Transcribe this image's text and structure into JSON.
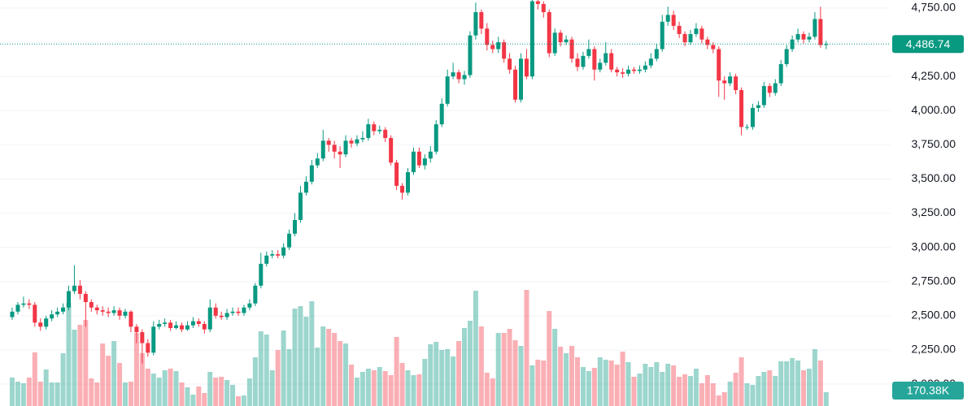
{
  "chart_data": {
    "type": "candlestick",
    "grid": true,
    "up_color": "#089981",
    "down_color": "#f23645",
    "volume_up_color": "rgba(8,153,129,0.4)",
    "volume_down_color": "rgba(242,54,69,0.4)",
    "ylim": [
      1840,
      4809
    ],
    "vlim": [
      0,
      5000000
    ],
    "yticks": [
      {
        "value": 2000,
        "label": "2,000.00"
      },
      {
        "value": 2250,
        "label": "2,250.00"
      },
      {
        "value": 2500,
        "label": "2,500.00"
      },
      {
        "value": 2750,
        "label": "2,750.00"
      },
      {
        "value": 3000,
        "label": "3,000.00"
      },
      {
        "value": 3250,
        "label": "3,250.00"
      },
      {
        "value": 3500,
        "label": "3,500.00"
      },
      {
        "value": 3750,
        "label": "3,750.00"
      },
      {
        "value": 4000,
        "label": "4,000.00"
      },
      {
        "value": 4250,
        "label": "4,250.00"
      },
      {
        "value": 4500,
        "label": "4,500.00"
      },
      {
        "value": 4750,
        "label": "4,750.00"
      }
    ],
    "last_price": {
      "value": 4486.74,
      "label": "4,486.74"
    },
    "last_volume": {
      "value": 170380,
      "label": "170.38K"
    },
    "open": [
      2490,
      2530,
      2580,
      2590,
      2580,
      2450,
      2420,
      2480,
      2510,
      2530,
      2560,
      2680,
      2720,
      2660,
      2600,
      2560,
      2540,
      2530,
      2520,
      2540,
      2500,
      2530,
      2420,
      2380,
      2300,
      2230,
      2420,
      2440,
      2450,
      2410,
      2430,
      2400,
      2430,
      2460,
      2440,
      2400,
      2560,
      2500,
      2490,
      2520,
      2530,
      2520,
      2560,
      2590,
      2720,
      2880,
      2940,
      2950,
      2940,
      3000,
      3100,
      3200,
      3400,
      3480,
      3600,
      3650,
      3780,
      3750,
      3700,
      3680,
      3780,
      3760,
      3790,
      3800,
      3900,
      3850,
      3860,
      3800,
      3620,
      3450,
      3400,
      3550,
      3700,
      3600,
      3650,
      3700,
      3900,
      4050,
      4250,
      4280,
      4230,
      4260,
      4550,
      4720,
      4600,
      4480,
      4450,
      4500,
      4380,
      4300,
      4080,
      4380,
      4250,
      4800,
      4780,
      4720,
      4420,
      4570,
      4500,
      4520,
      4380,
      4320,
      4400,
      4450,
      4300,
      4350,
      4420,
      4300,
      4280,
      4270,
      4300,
      4290,
      4300,
      4330,
      4380,
      4450,
      4650,
      4700,
      4620,
      4560,
      4500,
      4560,
      4600,
      4520,
      4480,
      4450,
      4220,
      4200,
      4250,
      4150,
      3880,
      3880,
      4020,
      4040,
      4180,
      4130,
      4200,
      4340,
      4450,
      4520,
      4560,
      4520,
      4540,
      4670,
      4480
    ],
    "high": [
      2560,
      2600,
      2640,
      2620,
      2600,
      2480,
      2500,
      2540,
      2560,
      2590,
      2720,
      2870,
      2760,
      2680,
      2620,
      2580,
      2570,
      2560,
      2570,
      2560,
      2550,
      2540,
      2440,
      2400,
      2330,
      2460,
      2470,
      2480,
      2470,
      2460,
      2450,
      2460,
      2490,
      2480,
      2460,
      2620,
      2590,
      2530,
      2550,
      2560,
      2560,
      2580,
      2620,
      2740,
      2960,
      2970,
      2980,
      2980,
      3030,
      3130,
      3250,
      3450,
      3520,
      3640,
      3690,
      3860,
      3800,
      3780,
      3740,
      3820,
      3800,
      3820,
      3850,
      3940,
      3920,
      3890,
      3880,
      3820,
      3640,
      3470,
      3580,
      3730,
      3730,
      3680,
      3740,
      3930,
      4090,
      4300,
      4350,
      4300,
      4290,
      4580,
      4790,
      4740,
      4640,
      4510,
      4540,
      4520,
      4420,
      4330,
      4420,
      4450,
      4810,
      4809,
      4800,
      4740,
      4600,
      4590,
      4550,
      4540,
      4420,
      4430,
      4520,
      4470,
      4380,
      4500,
      4450,
      4320,
      4310,
      4330,
      4320,
      4330,
      4360,
      4420,
      4490,
      4700,
      4760,
      4730,
      4650,
      4580,
      4590,
      4640,
      4620,
      4540,
      4500,
      4470,
      4250,
      4280,
      4270,
      4170,
      3900,
      4050,
      4070,
      4210,
      4200,
      4230,
      4370,
      4480,
      4550,
      4600,
      4580,
      4570,
      4720,
      4760,
      4510
    ],
    "low": [
      2470,
      2510,
      2560,
      2550,
      2420,
      2390,
      2400,
      2460,
      2490,
      2510,
      2540,
      2660,
      2620,
      2420,
      2530,
      2510,
      2500,
      2490,
      2500,
      2470,
      2480,
      2380,
      2300,
      2150,
      2200,
      2210,
      2400,
      2420,
      2390,
      2400,
      2380,
      2390,
      2410,
      2420,
      2370,
      2380,
      2480,
      2470,
      2470,
      2500,
      2500,
      2500,
      2540,
      2570,
      2700,
      2860,
      2920,
      2920,
      2920,
      2980,
      3080,
      3180,
      3380,
      3460,
      3580,
      3630,
      3700,
      3650,
      3580,
      3660,
      3730,
      3740,
      3770,
      3780,
      3820,
      3830,
      3770,
      3600,
      3420,
      3350,
      3380,
      3530,
      3580,
      3570,
      3620,
      3680,
      3880,
      4030,
      4230,
      4200,
      4190,
      4240,
      4520,
      4560,
      4440,
      4420,
      4420,
      4350,
      4270,
      4060,
      4060,
      4230,
      4230,
      4740,
      4680,
      4390,
      4400,
      4470,
      4480,
      4350,
      4290,
      4300,
      4380,
      4220,
      4280,
      4330,
      4280,
      4250,
      4240,
      4250,
      4270,
      4270,
      4280,
      4310,
      4360,
      4430,
      4620,
      4590,
      4530,
      4470,
      4480,
      4540,
      4490,
      4450,
      4420,
      4100,
      4080,
      4180,
      4120,
      3820,
      3860,
      3860,
      3990,
      4020,
      4100,
      4110,
      4180,
      4320,
      4430,
      4500,
      4490,
      4500,
      4520,
      4460,
      4450
    ],
    "close": [
      2530,
      2580,
      2590,
      2580,
      2450,
      2420,
      2480,
      2510,
      2530,
      2560,
      2680,
      2720,
      2660,
      2600,
      2560,
      2540,
      2530,
      2520,
      2540,
      2500,
      2530,
      2420,
      2380,
      2300,
      2230,
      2420,
      2440,
      2450,
      2410,
      2430,
      2400,
      2430,
      2460,
      2440,
      2400,
      2560,
      2500,
      2490,
      2520,
      2530,
      2520,
      2560,
      2590,
      2720,
      2880,
      2940,
      2950,
      2940,
      3000,
      3100,
      3200,
      3400,
      3480,
      3600,
      3650,
      3780,
      3750,
      3700,
      3680,
      3780,
      3760,
      3790,
      3800,
      3900,
      3850,
      3860,
      3800,
      3620,
      3450,
      3400,
      3550,
      3700,
      3600,
      3650,
      3700,
      3900,
      4050,
      4250,
      4280,
      4230,
      4260,
      4550,
      4720,
      4600,
      4480,
      4450,
      4500,
      4380,
      4300,
      4080,
      4380,
      4250,
      4800,
      4780,
      4720,
      4420,
      4570,
      4500,
      4520,
      4380,
      4320,
      4400,
      4450,
      4300,
      4350,
      4420,
      4300,
      4280,
      4270,
      4300,
      4290,
      4300,
      4330,
      4380,
      4450,
      4650,
      4700,
      4620,
      4560,
      4500,
      4560,
      4600,
      4520,
      4480,
      4450,
      4220,
      4200,
      4250,
      4150,
      3880,
      3880,
      4020,
      4040,
      4180,
      4130,
      4200,
      4340,
      4450,
      4520,
      4560,
      4520,
      4540,
      4670,
      4480,
      4486.74
    ],
    "volume": [
      350000,
      300000,
      280000,
      350000,
      660000,
      300000,
      450000,
      290000,
      290000,
      650000,
      1270000,
      940000,
      1000000,
      1060000,
      340000,
      290000,
      770000,
      620000,
      800000,
      530000,
      290000,
      300000,
      900000,
      650000,
      460000,
      400000,
      350000,
      440000,
      460000,
      430000,
      290000,
      230000,
      140000,
      240000,
      160000,
      420000,
      350000,
      360000,
      320000,
      260000,
      120000,
      130000,
      340000,
      600000,
      920000,
      880000,
      440000,
      690000,
      930000,
      700000,
      1200000,
      1230000,
      1100000,
      1290000,
      720000,
      980000,
      950000,
      900000,
      800000,
      770000,
      510000,
      350000,
      420000,
      460000,
      440000,
      480000,
      430000,
      380000,
      850000,
      530000,
      440000,
      380000,
      390000,
      580000,
      760000,
      790000,
      690000,
      700000,
      610000,
      800000,
      960000,
      1050000,
      1420000,
      980000,
      410000,
      340000,
      900000,
      900000,
      950000,
      810000,
      740000,
      1430000,
      500000,
      570000,
      560000,
      1170000,
      950000,
      730000,
      650000,
      740000,
      600000,
      480000,
      430000,
      470000,
      600000,
      570000,
      560000,
      510000,
      670000,
      540000,
      360000,
      400000,
      520000,
      480000,
      540000,
      420000,
      520000,
      500000,
      360000,
      390000,
      370000,
      460000,
      280000,
      380000,
      280000,
      130000,
      170000,
      300000,
      410000,
      600000,
      280000,
      260000,
      370000,
      420000,
      440000,
      370000,
      550000,
      550000,
      590000,
      560000,
      440000,
      460000,
      700000,
      560000,
      170380
    ]
  }
}
